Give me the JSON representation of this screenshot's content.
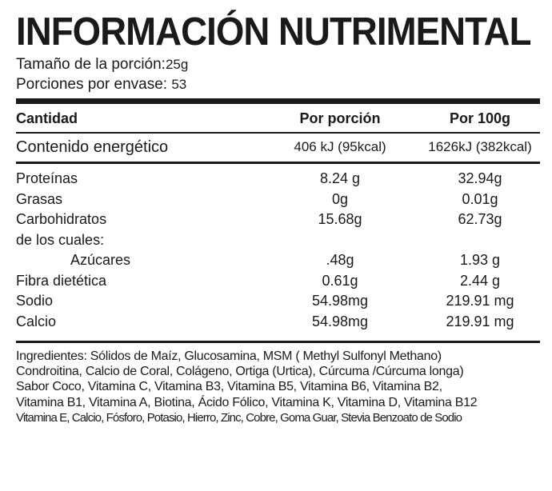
{
  "title": "INFORMACIÓN NUTRIMENTAL",
  "serving": {
    "size_label": "Tamaño de la porción:",
    "size_value": "25g",
    "servings_label": "Porciones por envase:",
    "servings_value": "53"
  },
  "table": {
    "headers": [
      "Cantidad",
      "Por porción",
      "Por 100g"
    ],
    "energy": {
      "label": "Contenido energético",
      "per_serving": "406 kJ (95kcal)",
      "per_100g": "1626kJ (382kcal)"
    },
    "rows": [
      {
        "label": "Proteínas",
        "per_serving": "8.24 g",
        "per_100g": "32.94g"
      },
      {
        "label": "Grasas",
        "per_serving": "0g",
        "per_100g": "0.01g"
      },
      {
        "label": "Carbohidratos",
        "per_serving": "15.68g",
        "per_100g": "62.73g"
      },
      {
        "label": "de los cuales:",
        "per_serving": "",
        "per_100g": ""
      },
      {
        "label": "Azúcares",
        "per_serving": ".48g",
        "per_100g": "1.93 g"
      },
      {
        "label": "Fibra dietética",
        "per_serving": "0.61g",
        "per_100g": "2.44 g"
      },
      {
        "label": "Sodio",
        "per_serving": "54.98mg",
        "per_100g": "219.91 mg"
      },
      {
        "label": "Calcio",
        "per_serving": "54.98mg",
        "per_100g": "219.91 mg"
      }
    ]
  },
  "ingredients": {
    "lines": [
      "Ingredientes: Sólidos de Maíz, Glucosamina, MSM ( Methyl Sulfonyl Methano)",
      "Condroitina, Calcio de Coral, Colágeno, Ortiga (Urtica), Cúrcuma /Cúrcuma longa)",
      "Sabor Coco,  Vitamina C, Vitamina B3, Vitamina B5, Vitamina B6, Vitamina B2,",
      "Vitamina B1, Vitamina A, Biotina, Ácido Fólico, Vitamina K, Vitamina D, Vitamina B12",
      "Vitamina E, Calcio, Fósforo, Potasio, Hierro, Zinc, Cobre, Goma Guar, Stevia Benzoato de Sodio"
    ]
  }
}
